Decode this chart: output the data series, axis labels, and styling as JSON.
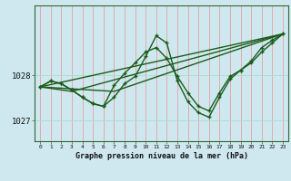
{
  "title": "Graphe pression niveau de la mer (hPa)",
  "bg_color": "#cfe8f0",
  "grid_v_color": "#e8a0a0",
  "grid_h_color": "#aaddcc",
  "line_color": "#1a5c1a",
  "ylim": [
    1026.55,
    1029.55
  ],
  "xlim": [
    -0.5,
    23.5
  ],
  "yticks": [
    1027,
    1028
  ],
  "xticks": [
    0,
    1,
    2,
    3,
    4,
    5,
    6,
    7,
    8,
    9,
    10,
    11,
    12,
    13,
    14,
    15,
    16,
    17,
    18,
    19,
    20,
    21,
    22,
    23
  ],
  "line1_x": [
    0,
    1,
    2,
    3,
    4,
    5,
    6,
    7,
    8,
    9,
    10,
    11,
    12,
    13,
    14,
    15,
    16,
    17,
    18,
    19,
    20,
    21,
    22,
    23
  ],
  "line1_y": [
    1027.75,
    1027.88,
    1027.82,
    1027.68,
    1027.52,
    1027.38,
    1027.32,
    1027.78,
    1028.05,
    1028.28,
    1028.52,
    1028.62,
    1028.38,
    1027.98,
    1027.62,
    1027.32,
    1027.22,
    1027.62,
    1027.98,
    1028.12,
    1028.28,
    1028.52,
    1028.72,
    1028.92
  ],
  "line2_x": [
    0,
    1,
    2,
    3,
    4,
    5,
    6,
    7,
    8,
    9,
    10,
    11,
    12,
    13,
    14,
    15,
    16,
    17,
    18,
    19,
    20,
    21,
    22,
    23
  ],
  "line2_y": [
    1027.75,
    1027.88,
    1027.82,
    1027.68,
    1027.52,
    1027.38,
    1027.32,
    1027.52,
    1027.82,
    1027.98,
    1028.42,
    1028.88,
    1028.72,
    1027.88,
    1027.42,
    1027.18,
    1027.08,
    1027.52,
    1027.92,
    1028.12,
    1028.32,
    1028.62,
    1028.78,
    1028.92
  ],
  "line3_x": [
    0,
    23
  ],
  "line3_y": [
    1027.75,
    1028.92
  ],
  "line4_x": [
    0,
    7,
    23
  ],
  "line4_y": [
    1027.75,
    1027.65,
    1028.92
  ],
  "line5_x": [
    0,
    3,
    23
  ],
  "line5_y": [
    1027.75,
    1027.65,
    1028.92
  ]
}
